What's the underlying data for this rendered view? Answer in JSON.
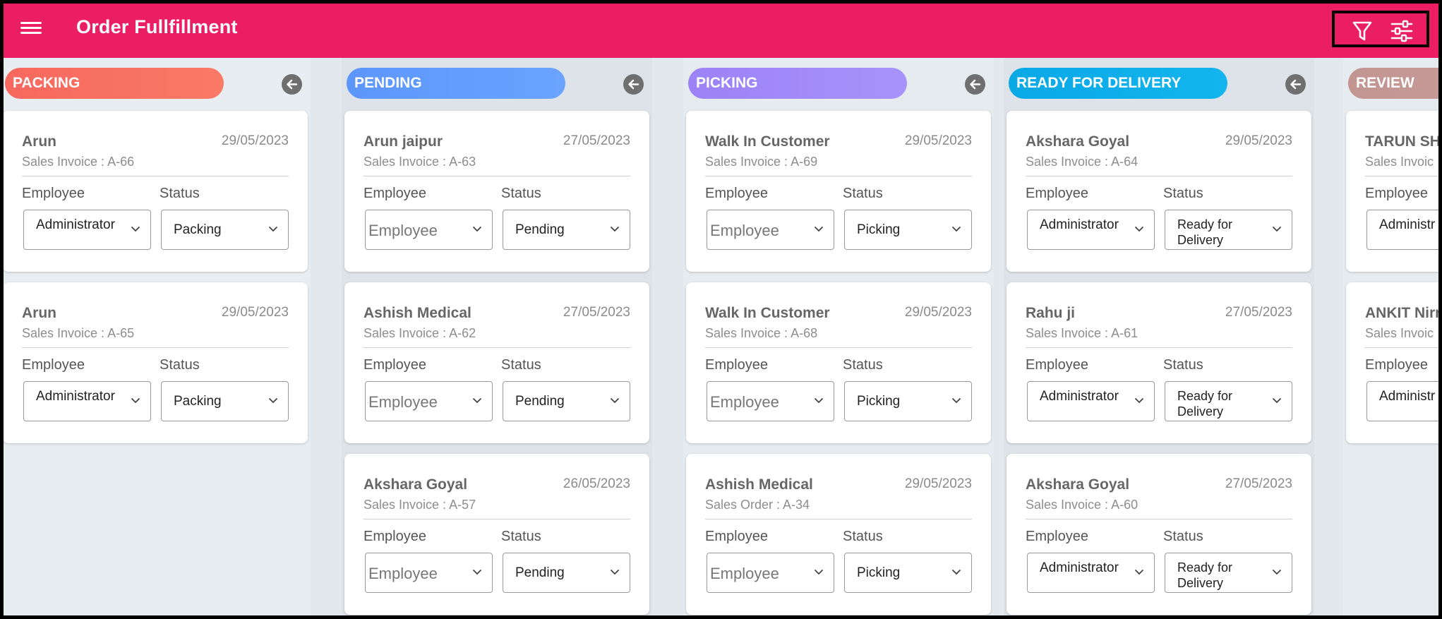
{
  "app": {
    "title": "Order Fullfillment"
  },
  "toolbar": {
    "menu_icon": "hamburger-menu-icon",
    "filter_icon": "filter-icon",
    "settings_icon": "sliders-icon"
  },
  "labels": {
    "employee": "Employee",
    "status": "Status"
  },
  "columns": [
    {
      "title": "PACKING",
      "color": "#f7685f",
      "color2": "#f97a66",
      "cards": [
        {
          "name": "Arun",
          "date": "29/05/2023",
          "ref": "Sales Invoice : A-66",
          "employee": "Administrator",
          "status": "Packing"
        },
        {
          "name": "Arun",
          "date": "29/05/2023",
          "ref": "Sales Invoice : A-65",
          "employee": "Administrator",
          "status": "Packing"
        }
      ]
    },
    {
      "title": "PENDING",
      "color": "#5c96fb",
      "color2": "#6aa4ff",
      "cards": [
        {
          "name": "Arun jaipur",
          "date": "27/05/2023",
          "ref": "Sales Invoice : A-63",
          "employee": "Employee",
          "status": "Pending"
        },
        {
          "name": "Ashish Medical",
          "date": "27/05/2023",
          "ref": "Sales Invoice : A-62",
          "employee": "Employee",
          "status": "Pending"
        },
        {
          "name": "Akshara Goyal",
          "date": "26/05/2023",
          "ref": "Sales Invoice : A-57",
          "employee": "Employee",
          "status": "Pending"
        }
      ]
    },
    {
      "title": "PICKING",
      "color": "#9b82f7",
      "color2": "#a793fa",
      "cards": [
        {
          "name": "Walk In Customer",
          "date": "29/05/2023",
          "ref": "Sales Invoice : A-69",
          "employee": "Employee",
          "status": "Picking"
        },
        {
          "name": "Walk In Customer",
          "date": "29/05/2023",
          "ref": "Sales Invoice : A-68",
          "employee": "Employee",
          "status": "Picking"
        },
        {
          "name": "Ashish Medical",
          "date": "29/05/2023",
          "ref": "Sales Order : A-34",
          "employee": "Employee",
          "status": "Picking"
        }
      ]
    },
    {
      "title": "READY FOR DELIVERY",
      "color": "#0aa9e6",
      "color2": "#14b4ee",
      "cards": [
        {
          "name": "Akshara Goyal",
          "date": "29/05/2023",
          "ref": "Sales Invoice : A-64",
          "employee": "Administrator",
          "status": "Ready for Delivery"
        },
        {
          "name": "Rahu ji",
          "date": "27/05/2023",
          "ref": "Sales Invoice : A-61",
          "employee": "Administrator",
          "status": "Ready for Delivery"
        },
        {
          "name": "Akshara Goyal",
          "date": "27/05/2023",
          "ref": "Sales Invoice : A-60",
          "employee": "Administrator",
          "status": "Ready for Delivery"
        }
      ]
    },
    {
      "title": "REVIEW",
      "color": "#c29591",
      "color2": "#c8a09c",
      "cards": [
        {
          "name": "TARUN SH",
          "date": "",
          "ref": "Sales Invoic",
          "employee": "Administr",
          "status": ""
        },
        {
          "name": "ANKIT Nirr",
          "date": "",
          "ref": "Sales Invoic",
          "employee": "Administr",
          "status": ""
        }
      ]
    }
  ]
}
